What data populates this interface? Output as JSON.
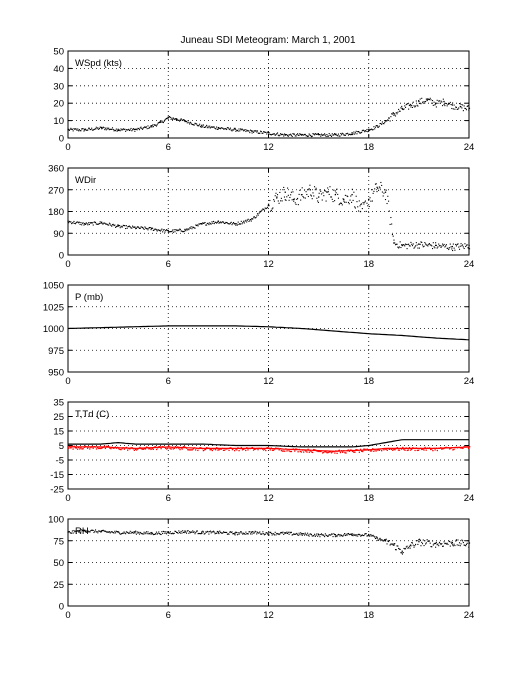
{
  "figure": {
    "title": "Juneau SDI Meteogram:      March  1, 2001"
  },
  "chart_data": [
    {
      "type": "scatter",
      "label": "WSpd (kts)",
      "xlim": [
        0,
        24
      ],
      "ylim": [
        0,
        50
      ],
      "xticks": [
        0,
        6,
        12,
        18,
        24
      ],
      "yticks": [
        0,
        10,
        20,
        30,
        40,
        50
      ],
      "grid": true,
      "color": "#000000",
      "series": [
        {
          "x": [
            0,
            1,
            2,
            3,
            4,
            5,
            5.5,
            6,
            6.5,
            7,
            8,
            9,
            10,
            11,
            12,
            13,
            14,
            15,
            16,
            17,
            18,
            18.5,
            19,
            19.5,
            20,
            20.5,
            21,
            21.5,
            22,
            22.5,
            23,
            23.5,
            24
          ],
          "y": [
            5,
            5,
            6,
            5,
            5,
            7,
            9,
            12,
            11,
            10,
            7,
            6,
            5,
            4,
            3,
            2,
            2,
            2,
            2,
            3,
            5,
            7,
            10,
            14,
            17,
            19,
            21,
            22,
            20,
            21,
            19,
            18,
            17
          ]
        }
      ]
    },
    {
      "type": "scatter",
      "label": "WDir",
      "xlim": [
        0,
        24
      ],
      "ylim": [
        0,
        360
      ],
      "xticks": [
        0,
        6,
        12,
        18,
        24
      ],
      "yticks": [
        0,
        90,
        180,
        270,
        360
      ],
      "grid": true,
      "color": "#000000",
      "series": [
        {
          "x": [
            0,
            1,
            2,
            3,
            4,
            5,
            6,
            7,
            8,
            9,
            10,
            11,
            11.5,
            12,
            12.5,
            13,
            13.5,
            14,
            14.5,
            15,
            15.5,
            16,
            16.5,
            17,
            17.5,
            18,
            18.5,
            19,
            19.5,
            20,
            21,
            22,
            23,
            24
          ],
          "y": [
            140,
            130,
            135,
            120,
            115,
            110,
            100,
            105,
            130,
            140,
            130,
            150,
            180,
            210,
            240,
            260,
            230,
            250,
            270,
            240,
            260,
            250,
            230,
            250,
            180,
            230,
            280,
            260,
            50,
            40,
            45,
            40,
            35,
            40
          ]
        }
      ]
    },
    {
      "type": "line",
      "label": "P (mb)",
      "xlim": [
        0,
        24
      ],
      "ylim": [
        950,
        1050
      ],
      "xticks": [
        0,
        6,
        12,
        18,
        24
      ],
      "yticks": [
        950,
        975,
        1000,
        1025,
        1050
      ],
      "grid": true,
      "color": "#000000",
      "series": [
        {
          "x": [
            0,
            2,
            4,
            6,
            8,
            10,
            12,
            14,
            16,
            18,
            20,
            22,
            24
          ],
          "y": [
            1000,
            1001,
            1002,
            1003,
            1003,
            1003,
            1002,
            1000,
            997,
            994,
            992,
            989,
            987
          ]
        }
      ]
    },
    {
      "type": "line",
      "label": "T,Td (C)",
      "xlim": [
        0,
        24
      ],
      "ylim": [
        -25,
        35
      ],
      "xticks": [
        0,
        6,
        12,
        18,
        24
      ],
      "yticks": [
        -25,
        -15,
        -5,
        5,
        15,
        25,
        35
      ],
      "grid": true,
      "series": [
        {
          "color": "#000000",
          "x": [
            0,
            2,
            3,
            4,
            6,
            8,
            10,
            12,
            14,
            16,
            17,
            18,
            19,
            20,
            22,
            24
          ],
          "y": [
            6,
            6,
            7,
            6,
            6,
            6,
            5,
            5,
            4,
            4,
            4,
            5,
            7,
            9,
            9,
            9
          ]
        },
        {
          "color": "#ff0000",
          "x": [
            0,
            2,
            4,
            6,
            8,
            10,
            12,
            14,
            16,
            18,
            19,
            20,
            22,
            24
          ],
          "y": [
            4,
            4,
            3,
            4,
            3,
            3,
            3,
            2,
            1,
            2,
            3,
            3,
            3,
            4
          ]
        }
      ]
    },
    {
      "type": "scatter",
      "label": "RH",
      "xlim": [
        0,
        24
      ],
      "ylim": [
        0,
        100
      ],
      "xticks": [
        0,
        6,
        12,
        18,
        24
      ],
      "yticks": [
        0,
        25,
        50,
        75,
        100
      ],
      "grid": true,
      "color": "#000000",
      "series": [
        {
          "x": [
            0,
            1,
            2,
            3,
            4,
            5,
            6,
            7,
            8,
            9,
            10,
            11,
            12,
            13,
            14,
            15,
            16,
            17,
            18,
            18.5,
            19,
            19.5,
            20,
            20.5,
            21,
            22,
            23,
            24
          ],
          "y": [
            85,
            87,
            86,
            85,
            85,
            84,
            85,
            86,
            85,
            85,
            84,
            85,
            84,
            84,
            83,
            82,
            82,
            83,
            82,
            78,
            75,
            70,
            63,
            70,
            74,
            72,
            73,
            72
          ]
        }
      ]
    }
  ]
}
